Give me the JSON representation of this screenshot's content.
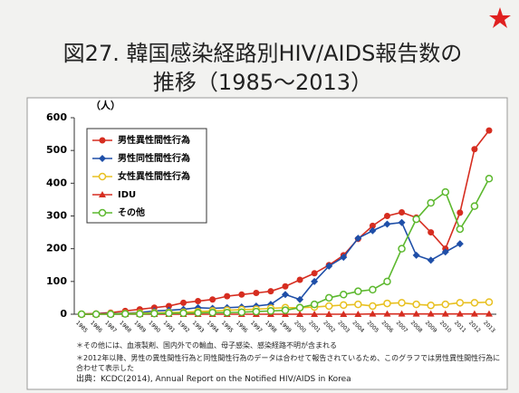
{
  "chart_data": {
    "type": "line",
    "title": [
      "図27. 韓国感染経路別HIV/AIDS報告数の",
      "推移（1985～2013）"
    ],
    "y_label": "（人）",
    "categories": [
      "1985",
      "1986",
      "1987",
      "1988",
      "1989",
      "1990",
      "1991",
      "1992",
      "1993",
      "1994",
      "1995",
      "1996",
      "1997",
      "1998",
      "1999",
      "2000",
      "2001",
      "2002",
      "2003",
      "2004",
      "2005",
      "2006",
      "2007",
      "2008",
      "2009",
      "2010",
      "2011",
      "2012",
      "2013"
    ],
    "series": [
      {
        "name": "男性異性間性行為",
        "color": "#d62d20",
        "marker": "circle",
        "values": [
          1,
          2,
          5,
          10,
          15,
          20,
          25,
          35,
          40,
          45,
          55,
          60,
          65,
          70,
          85,
          105,
          125,
          150,
          180,
          230,
          270,
          300,
          311,
          295,
          250,
          200,
          310,
          504,
          561
        ]
      },
      {
        "name": "男性同性間性行為",
        "color": "#1f4fa8",
        "marker": "diamond",
        "values": [
          0,
          1,
          2,
          3,
          5,
          10,
          12,
          15,
          20,
          18,
          20,
          22,
          25,
          30,
          60,
          45,
          100,
          147,
          174,
          232,
          255,
          275,
          280,
          180,
          165,
          190,
          215,
          null,
          null
        ]
      },
      {
        "name": "女性異性間性行為",
        "color": "#e8c020",
        "marker": "open-circle",
        "values": [
          0,
          0,
          1,
          2,
          3,
          4,
          5,
          6,
          8,
          10,
          12,
          14,
          15,
          18,
          20,
          20,
          22,
          25,
          28,
          30,
          25,
          33,
          35,
          30,
          27,
          30,
          35,
          35,
          37
        ]
      },
      {
        "name": "IDU",
        "color": "#d62d20",
        "marker": "triangle",
        "values": [
          0,
          0,
          0,
          0,
          0,
          0,
          0,
          0,
          0,
          0,
          0,
          0,
          0,
          0,
          0,
          0,
          0,
          0,
          0,
          0,
          1,
          1,
          1,
          1,
          1,
          1,
          1,
          1,
          1
        ]
      },
      {
        "name": "その他",
        "color": "#5cb82e",
        "marker": "open-circle",
        "values": [
          0,
          0,
          0,
          1,
          1,
          2,
          3,
          3,
          4,
          5,
          5,
          6,
          8,
          10,
          12,
          20,
          30,
          50,
          60,
          70,
          75,
          100,
          200,
          290,
          340,
          373,
          260,
          330,
          414
        ]
      }
    ],
    "ylim": [
      0,
      600
    ],
    "yticks": [
      0,
      100,
      200,
      300,
      400,
      500,
      600
    ],
    "notes": [
      "＊その他には、血液製剤、国内外での輸血、母子感染、感染経路不明が含まれる",
      "＊2012年以降、男性の異性間性行為と同性間性行為のデータは合わせて報告されているため、このグラフでは男性異性間性行為に合わせて表示した",
      "出典：KCDC(2014), Annual Report on the Notified HIV/AIDS in Korea"
    ]
  }
}
